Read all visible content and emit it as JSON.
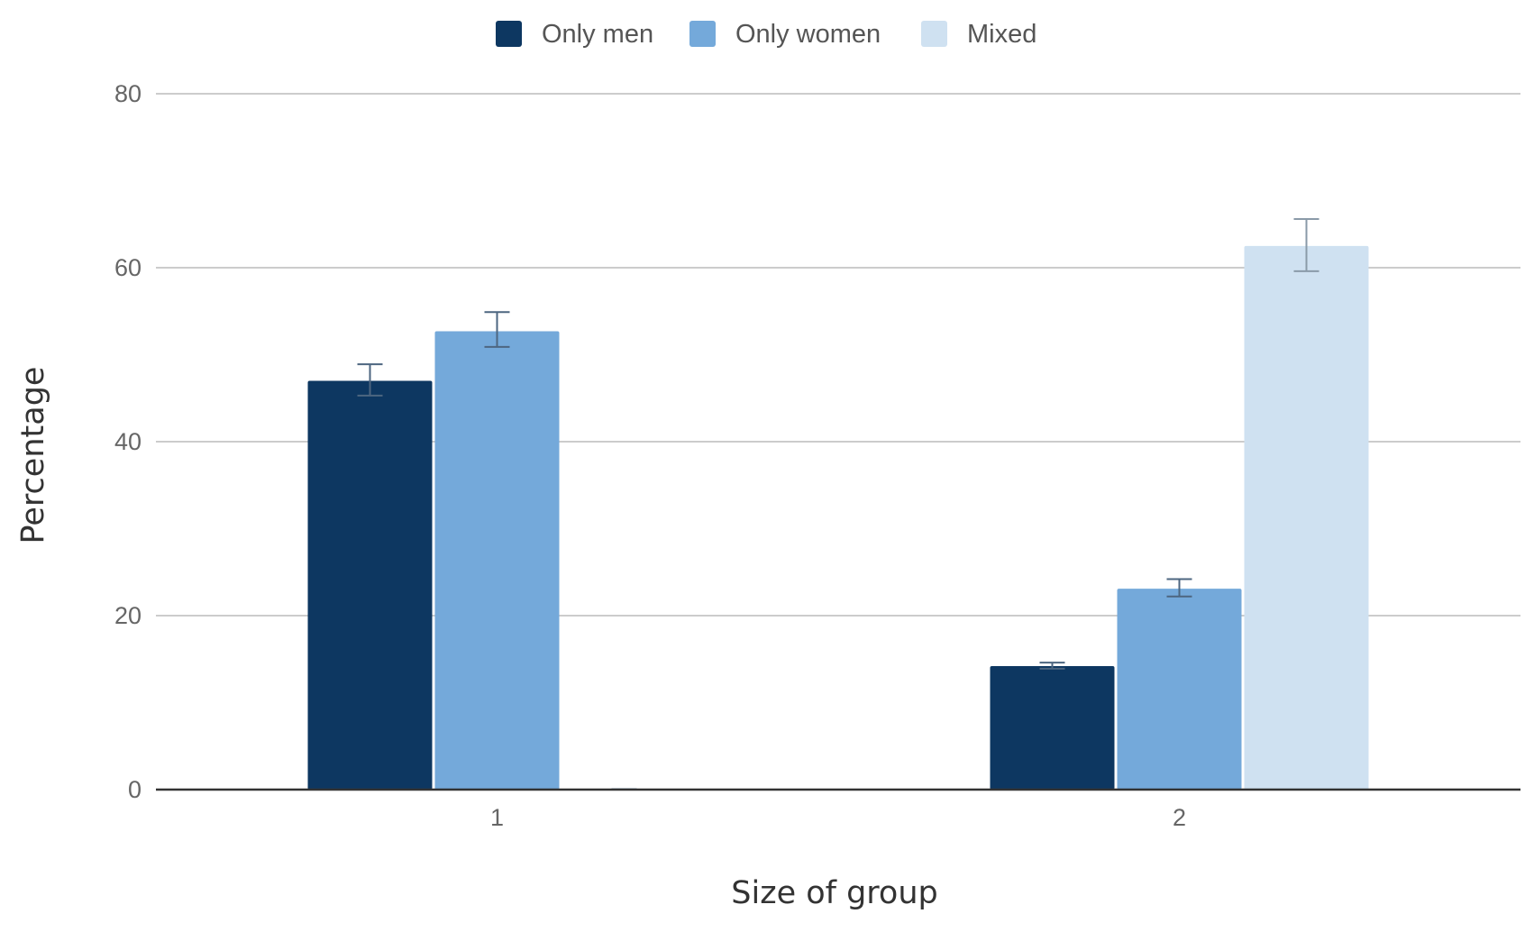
{
  "chart_data": {
    "type": "bar",
    "title": "",
    "xlabel": "Size of group",
    "ylabel": "Percentage",
    "categories": [
      "1",
      "2"
    ],
    "ylim": [
      0,
      80
    ],
    "yticks": [
      0,
      20,
      40,
      60,
      80
    ],
    "grid": true,
    "legend_position": "top",
    "series": [
      {
        "name": "Only men",
        "color": "#0d3761",
        "values": [
          47.0,
          14.2
        ],
        "error_low": [
          45.3,
          13.9
        ],
        "error_high": [
          48.9,
          14.6
        ]
      },
      {
        "name": "Only women",
        "color": "#74a9da",
        "values": [
          52.7,
          23.1
        ],
        "error_low": [
          50.9,
          22.2
        ],
        "error_high": [
          54.9,
          24.2
        ]
      },
      {
        "name": "Mixed",
        "color": "#cfe1f1",
        "values": [
          0,
          62.5
        ],
        "error_low": [
          0,
          59.6
        ],
        "error_high": [
          0,
          65.6
        ]
      }
    ]
  }
}
